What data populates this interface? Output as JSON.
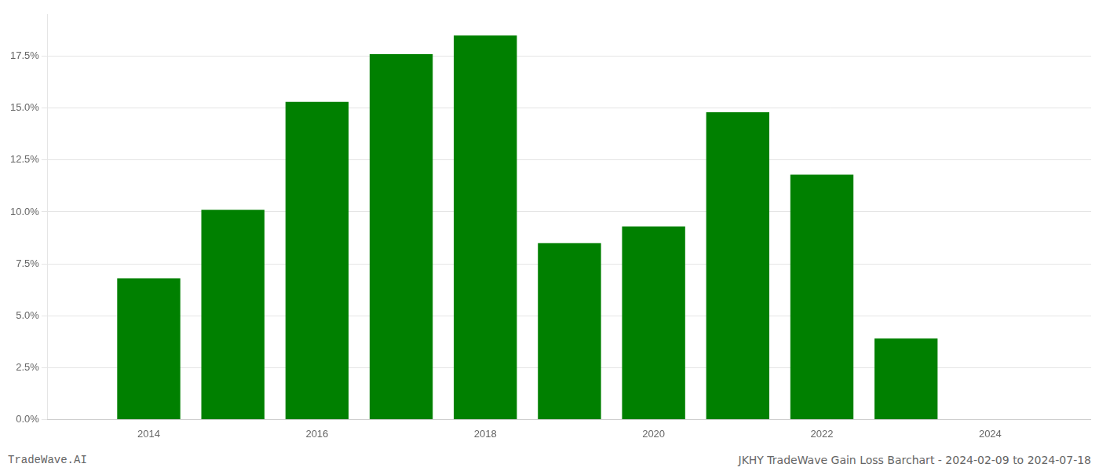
{
  "chart_data": {
    "type": "bar",
    "x": [
      2014,
      2015,
      2016,
      2017,
      2018,
      2019,
      2020,
      2021,
      2022,
      2023
    ],
    "values": [
      0.068,
      0.101,
      0.153,
      0.176,
      0.185,
      0.085,
      0.093,
      0.148,
      0.118,
      0.039
    ],
    "color": "#008000",
    "xlim": [
      2012.8,
      2025.2
    ],
    "xticks": [
      2014,
      2016,
      2018,
      2020,
      2022,
      2024
    ],
    "ylim": [
      0,
      0.195
    ],
    "yticks": [
      {
        "value": 0.0,
        "label": "0.0%"
      },
      {
        "value": 0.025,
        "label": "2.5%"
      },
      {
        "value": 0.05,
        "label": "5.0%"
      },
      {
        "value": 0.075,
        "label": "7.5%"
      },
      {
        "value": 0.1,
        "label": "10.0%"
      },
      {
        "value": 0.125,
        "label": "12.5%"
      },
      {
        "value": 0.15,
        "label": "15.0%"
      },
      {
        "value": 0.175,
        "label": "17.5%"
      }
    ],
    "grid": true,
    "annotations": [
      "TradeWave.AI",
      "JKHY TradeWave Gain Loss Barchart - 2024-02-09 to 2024-07-18"
    ]
  }
}
